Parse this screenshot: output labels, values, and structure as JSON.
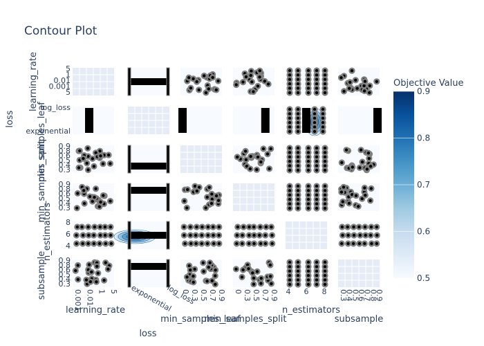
{
  "chart_data": {
    "type": "contour",
    "title": "Contour Plot",
    "params": [
      "learning_rate",
      "loss",
      "min_samples_leaf",
      "min_samples_split",
      "n_estimators",
      "subsample"
    ],
    "axis_titles": {
      "learning_rate": "learning_rate",
      "loss": "loss",
      "min_samples_leaf": "min_samples_leaf",
      "min_samples_split": "min_samples_split",
      "n_estimators": "n_estimators",
      "subsample": "subsample"
    },
    "side_title": "loss",
    "bottom_title": "loss",
    "ticks": {
      "learning_rate": [
        "0.001",
        "0.01",
        "1",
        "5"
      ],
      "loss": [
        "log_loss",
        "exponential"
      ],
      "min_samples_leaf": [
        "0.3",
        "0.4",
        "0.5",
        "0.6",
        "0.7",
        "0.8",
        "0.9"
      ],
      "min_samples_split": [
        "0.3",
        "0.4",
        "0.5",
        "0.6",
        "0.7",
        "0.8",
        "0.9"
      ],
      "n_estimators": [
        "4",
        "6",
        "8"
      ],
      "subsample": [
        "0.3",
        "0.4",
        "0.5",
        "0.6",
        "0.7",
        "0.8",
        "0.9"
      ]
    },
    "row_tick_labels": [
      [
        "5",
        "1",
        "0.01",
        "0.001",
        "5"
      ],
      [
        "log_loss",
        "exponential"
      ],
      [
        "0.9",
        "0.8",
        "0.6",
        "0.5",
        "0.4",
        "0.3"
      ],
      [
        "0.9",
        "0.8",
        "0.6",
        "0.5",
        "0.4",
        "0.3"
      ],
      [
        "8",
        "6",
        "4"
      ],
      [
        "0.9",
        "0.8",
        "0.6",
        "0.5",
        "0.4",
        "0.3"
      ]
    ],
    "bottom_tick_labels": [
      [
        "0.001",
        "0.01",
        "1",
        "5"
      ],
      [
        "exponential",
        "log_loss"
      ],
      [
        "0",
        "0.3",
        "0.5",
        "0.7",
        "0.9"
      ],
      [
        "0",
        "0.3",
        "0.5",
        "0.7",
        "0.9"
      ],
      [
        "4",
        "6",
        "8"
      ],
      [
        "0.3",
        "0.4",
        "0.5",
        "0.6",
        "0.7",
        "0.8",
        "0.9"
      ]
    ],
    "colorbar": {
      "title": "Objective Value",
      "range": [
        0.5,
        0.9
      ],
      "ticks": [
        "0.5",
        "0.6",
        "0.7",
        "0.8",
        "0.9"
      ],
      "colors": [
        "#f7fbff",
        "#deebf7",
        "#c6dbef",
        "#9ecae1",
        "#6baed6",
        "#4292c6",
        "#2171b5",
        "#08519c",
        "#08306b"
      ]
    },
    "colors": {
      "point_fill": "#000000",
      "point_edge": "#808080",
      "diag_bg": "#e5ecf6",
      "grid": "#ffffff",
      "text": "#2a3f5f"
    }
  }
}
